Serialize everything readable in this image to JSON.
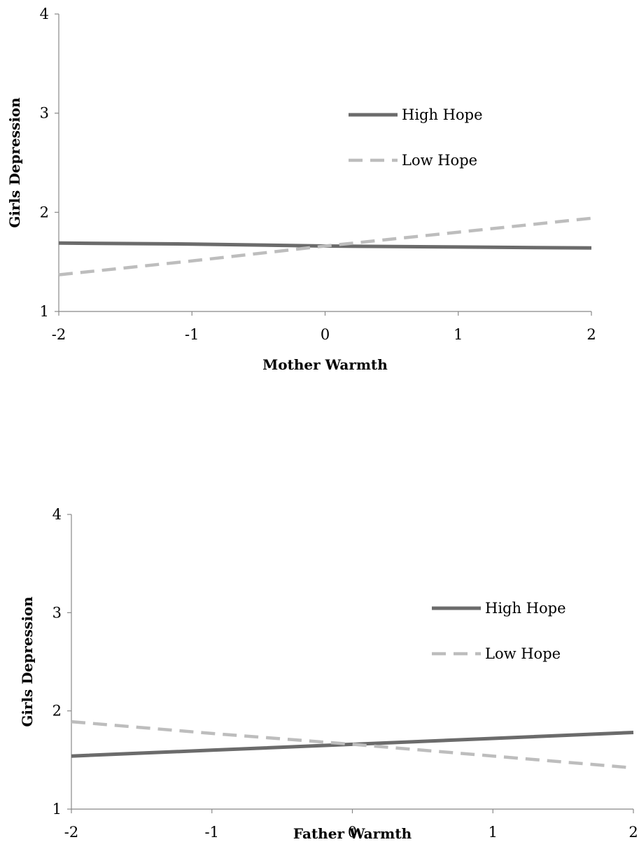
{
  "chart_data": [
    {
      "type": "line",
      "title": "",
      "xlabel": "Mother Warmth",
      "ylabel": "Girls Depression",
      "x": [
        -2,
        -1,
        0,
        1,
        2
      ],
      "xlim": [
        -2,
        2
      ],
      "ylim": [
        1,
        4
      ],
      "xticks": [
        "-2",
        "-1",
        "0",
        "1",
        "2"
      ],
      "yticks": [
        "1",
        "2",
        "3",
        "4"
      ],
      "grid": false,
      "legend_position": "right",
      "series": [
        {
          "name": "High Hope",
          "values": [
            1.69,
            1.68,
            1.66,
            1.65,
            1.64
          ],
          "color": "#6b6b6b",
          "dashed": false
        },
        {
          "name": "Low Hope",
          "values": [
            1.37,
            1.51,
            1.66,
            1.8,
            1.94
          ],
          "color": "#bdbdbd",
          "dashed": true
        }
      ]
    },
    {
      "type": "line",
      "title": "",
      "xlabel": "Father Warmth",
      "ylabel": "Girls Depression",
      "x": [
        -2,
        -1,
        0,
        1,
        2
      ],
      "xlim": [
        -2,
        2
      ],
      "ylim": [
        1,
        4
      ],
      "xticks": [
        "-2",
        "-1",
        "0",
        "1",
        "2"
      ],
      "yticks": [
        "1",
        "2",
        "3",
        "4"
      ],
      "grid": false,
      "legend_position": "right",
      "series": [
        {
          "name": "High Hope",
          "values": [
            1.54,
            1.6,
            1.66,
            1.72,
            1.78
          ],
          "color": "#6b6b6b",
          "dashed": false
        },
        {
          "name": "Low Hope",
          "values": [
            1.89,
            1.77,
            1.66,
            1.54,
            1.42
          ],
          "color": "#bdbdbd",
          "dashed": true
        }
      ]
    }
  ]
}
